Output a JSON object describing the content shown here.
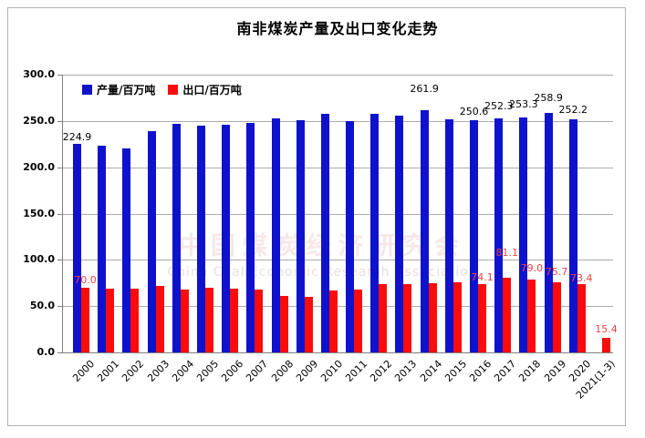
{
  "window": {
    "background": "#ffffff",
    "frame_border_color": "#b3b3b3"
  },
  "watermark": {
    "line1": "中国煤炭经济研究会",
    "line2": "China Coal Economic Research Association"
  },
  "chart_data": {
    "type": "bar",
    "title": "南非煤炭产量及出口变化走势",
    "xlabel": "",
    "ylabel": "",
    "ylim": [
      0,
      300
    ],
    "ytick_step": 50,
    "yticks": [
      "0.0",
      "50.0",
      "100.0",
      "150.0",
      "200.0",
      "250.0",
      "300.0"
    ],
    "grid": true,
    "legend_position": "top-left-inside",
    "categories": [
      "2000",
      "2001",
      "2002",
      "2003",
      "2004",
      "2005",
      "2006",
      "2007",
      "2008",
      "2009",
      "2010",
      "2011",
      "2012",
      "2013",
      "2014",
      "2015",
      "2016",
      "2017",
      "2018",
      "2019",
      "2020",
      "2021(1-3)"
    ],
    "series": [
      {
        "name": "产量/百万吨",
        "color": "#0f12cd",
        "label_color": "#000000",
        "values": [
          224.9,
          223.5,
          220.5,
          238.8,
          246.5,
          245.0,
          245.5,
          247.5,
          252.5,
          250.5,
          257.5,
          250.0,
          258.0,
          256.0,
          261.9,
          252.0,
          250.6,
          252.3,
          253.3,
          258.9,
          252.2,
          null
        ],
        "data_labels": [
          "224.9",
          null,
          null,
          null,
          null,
          null,
          null,
          null,
          null,
          null,
          null,
          null,
          null,
          null,
          "261.9",
          null,
          "250.6",
          "252.3",
          "253.3",
          "258.9",
          "252.2",
          null
        ]
      },
      {
        "name": "出口/百万吨",
        "color": "#fb0b0b",
        "label_color": "#f54242",
        "values": [
          70.0,
          69.0,
          69.0,
          71.5,
          67.5,
          70.0,
          68.5,
          67.5,
          60.5,
          60.0,
          67.0,
          68.0,
          73.5,
          74.0,
          75.0,
          75.5,
          74.1,
          81.1,
          79.0,
          75.7,
          73.4,
          15.4
        ],
        "data_labels": [
          "70.0",
          null,
          null,
          null,
          null,
          null,
          null,
          null,
          null,
          null,
          null,
          null,
          null,
          null,
          null,
          null,
          "74.1",
          "81.1",
          "79.0",
          "75.7",
          "73.4",
          "15.4"
        ]
      }
    ]
  }
}
